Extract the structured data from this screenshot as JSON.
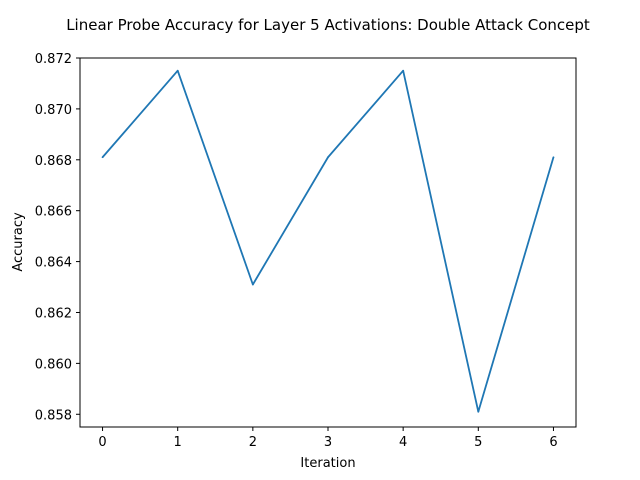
{
  "chart_data": {
    "type": "line",
    "title": "Linear Probe Accuracy for Layer 5 Activations: Double Attack Concept",
    "xlabel": "Iteration",
    "ylabel": "Accuracy",
    "x": [
      0,
      1,
      2,
      3,
      4,
      5,
      6
    ],
    "series": [
      {
        "values": [
          0.8681,
          0.8715,
          0.8631,
          0.8681,
          0.8715,
          0.8581,
          0.8681
        ],
        "color": "#1f77b4"
      }
    ],
    "xlim": [
      -0.3,
      6.3
    ],
    "ylim": [
      0.8575,
      0.872
    ],
    "xticks": [
      0,
      1,
      2,
      3,
      4,
      5,
      6
    ],
    "xtick_labels": [
      "0",
      "1",
      "2",
      "3",
      "4",
      "5",
      "6"
    ],
    "yticks": [
      0.858,
      0.86,
      0.862,
      0.864,
      0.866,
      0.868,
      0.87,
      0.872
    ],
    "ytick_labels": [
      "0.858",
      "0.860",
      "0.862",
      "0.864",
      "0.866",
      "0.868",
      "0.870",
      "0.872"
    ],
    "grid": false,
    "legend": false
  }
}
